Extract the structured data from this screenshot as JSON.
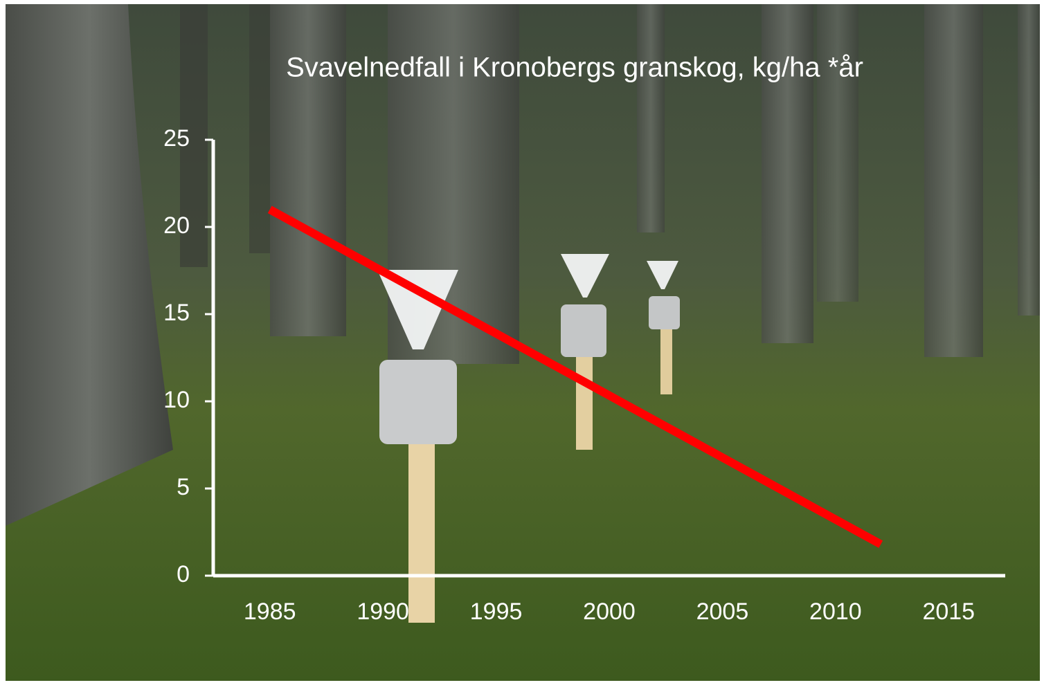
{
  "chart_data": {
    "type": "line",
    "title": "Svavelnedfall i Kronobergs granskog, kg/ha *år",
    "x": [
      1985,
      2012
    ],
    "values": [
      21,
      1.8
    ],
    "color": "#ff0000",
    "xlim": [
      1982.5,
      2017.5
    ],
    "xticks": [
      1985,
      1990,
      1995,
      2000,
      2005,
      2010,
      2015
    ],
    "ylim": [
      0,
      25
    ],
    "yticks": [
      0,
      5,
      10,
      15,
      20,
      25
    ],
    "grid": false
  }
}
